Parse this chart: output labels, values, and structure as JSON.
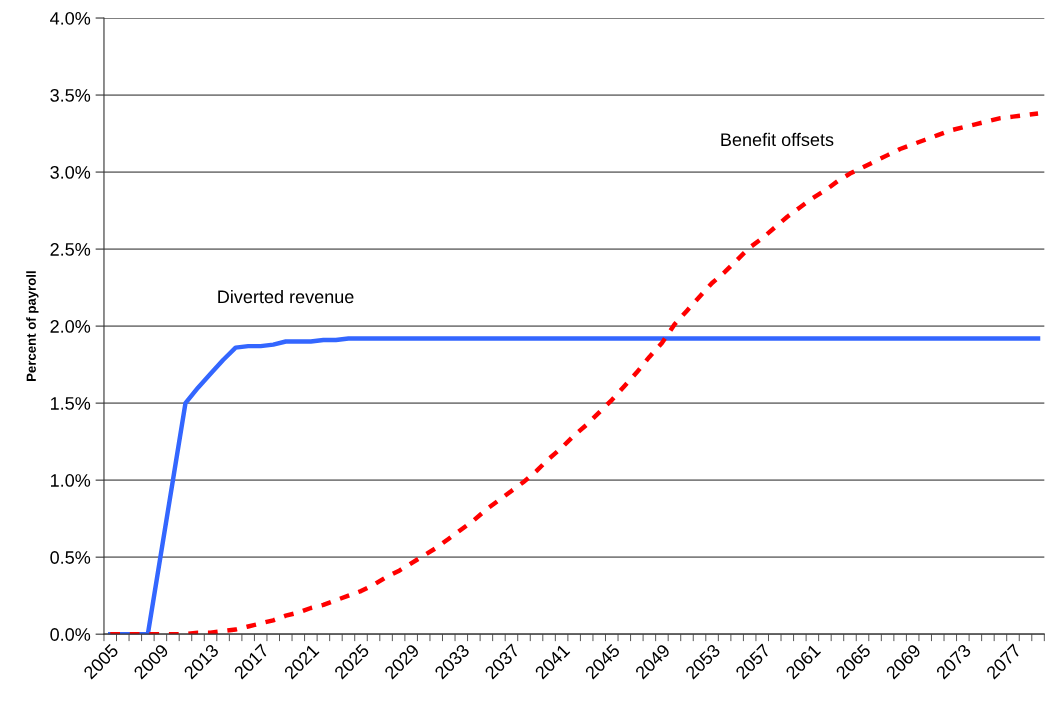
{
  "chart_data": {
    "type": "line",
    "ylabel": "Percent of payroll",
    "categories": [
      "2005",
      null,
      null,
      null,
      "2009",
      null,
      null,
      null,
      "2013",
      null,
      null,
      null,
      "2017",
      null,
      null,
      null,
      "2021",
      null,
      null,
      null,
      "2025",
      null,
      null,
      null,
      "2029",
      null,
      null,
      null,
      "2033",
      null,
      null,
      null,
      "2037",
      null,
      null,
      null,
      "2041",
      null,
      null,
      null,
      "2045",
      null,
      null,
      null,
      "2049",
      null,
      null,
      null,
      "2053",
      null,
      null,
      null,
      "2057",
      null,
      null,
      null,
      "2061",
      null,
      null,
      null,
      "2065",
      null,
      null,
      null,
      "2069",
      null,
      null,
      null,
      "2073",
      null,
      null,
      null,
      "2077",
      null,
      null
    ],
    "series": [
      {
        "name": "Diverted revenue",
        "color": "#3366ff",
        "line_style": "solid",
        "values": [
          0,
          0,
          0,
          0,
          0.5,
          1.0,
          1.5,
          1.6,
          1.69,
          1.78,
          1.86,
          1.87,
          1.87,
          1.88,
          1.9,
          1.9,
          1.9,
          1.91,
          1.91,
          1.92,
          1.92,
          1.92,
          1.92,
          1.92,
          1.92,
          1.92,
          1.92,
          1.92,
          1.92,
          1.92,
          1.92,
          1.92,
          1.92,
          1.92,
          1.92,
          1.92,
          1.92,
          1.92,
          1.92,
          1.92,
          1.92,
          1.92,
          1.92,
          1.92,
          1.92,
          1.92,
          1.92,
          1.92,
          1.92,
          1.92,
          1.92,
          1.92,
          1.92,
          1.92,
          1.92,
          1.92,
          1.92,
          1.92,
          1.92,
          1.92,
          1.92,
          1.92,
          1.92,
          1.92,
          1.92,
          1.92,
          1.92,
          1.92,
          1.92,
          1.92,
          1.92,
          1.92,
          1.92,
          1.92,
          1.92
        ]
      },
      {
        "name": "Benefit offsets",
        "color": "#ff0000",
        "line_style": "dashed",
        "values": [
          0,
          0,
          0,
          0,
          0,
          0,
          0,
          0.01,
          0.01,
          0.02,
          0.03,
          0.05,
          0.07,
          0.09,
          0.12,
          0.14,
          0.17,
          0.19,
          0.22,
          0.25,
          0.28,
          0.32,
          0.37,
          0.41,
          0.46,
          0.51,
          0.56,
          0.62,
          0.68,
          0.74,
          0.81,
          0.87,
          0.93,
          0.99,
          1.06,
          1.14,
          1.21,
          1.29,
          1.36,
          1.44,
          1.52,
          1.61,
          1.7,
          1.8,
          1.89,
          2.01,
          2.1,
          2.19,
          2.28,
          2.35,
          2.43,
          2.51,
          2.57,
          2.64,
          2.71,
          2.77,
          2.83,
          2.88,
          2.94,
          2.99,
          3.03,
          3.07,
          3.11,
          3.15,
          3.18,
          3.21,
          3.24,
          3.27,
          3.29,
          3.31,
          3.33,
          3.35,
          3.36,
          3.37,
          3.38
        ]
      }
    ],
    "ylim": [
      0,
      4
    ],
    "yticks": [
      {
        "value": 0,
        "label": "0.0%"
      },
      {
        "value": 0.5,
        "label": "0.5%"
      },
      {
        "value": 1,
        "label": "1.0%"
      },
      {
        "value": 1.5,
        "label": "1.5%"
      },
      {
        "value": 2,
        "label": "2.0%"
      },
      {
        "value": 2.5,
        "label": "2.5%"
      },
      {
        "value": 3,
        "label": "3.0%"
      },
      {
        "value": 3.5,
        "label": "3.5%"
      },
      {
        "value": 4,
        "label": "4.0%"
      }
    ],
    "grid": "y",
    "legend": false,
    "marker": "none"
  }
}
